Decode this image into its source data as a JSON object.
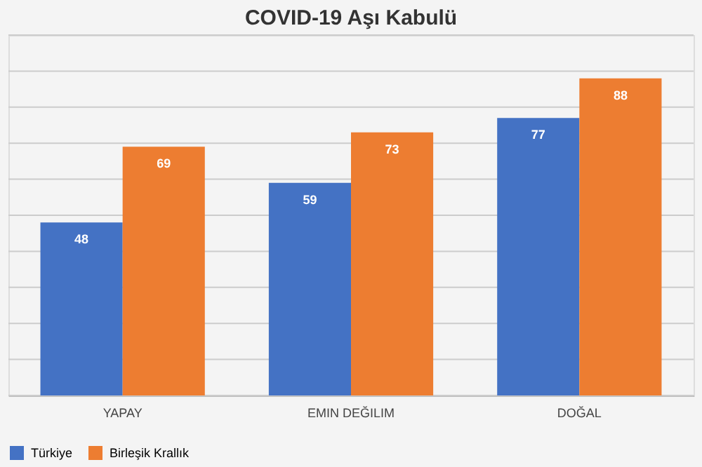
{
  "chart_data": {
    "type": "bar",
    "title": "COVID-19 Aşı Kabulü",
    "categories": [
      "YAPAY",
      "EMIN DEĞILIM",
      "DOĞAL"
    ],
    "series": [
      {
        "name": "Türkiye",
        "color": "#4472c4",
        "values": [
          48,
          59,
          77
        ]
      },
      {
        "name": "Birleşik Krallık",
        "color": "#ed7d31",
        "values": [
          69,
          73,
          88
        ]
      }
    ],
    "ylim": [
      0,
      100
    ],
    "yticks": [
      {
        "value": 0,
        "label": null
      },
      {
        "value": 10,
        "label": null
      },
      {
        "value": 20,
        "label": null
      },
      {
        "value": 30,
        "label": null
      },
      {
        "value": 40,
        "label": null
      },
      {
        "value": 50,
        "label": null
      },
      {
        "value": 60,
        "label": null
      },
      {
        "value": 70,
        "label": null
      },
      {
        "value": 80,
        "label": null
      },
      {
        "value": 90,
        "label": null
      },
      {
        "value": 100,
        "label": null
      }
    ],
    "tick_labels": "x",
    "grid": "y",
    "legend": "bottom",
    "data_labels": true
  }
}
